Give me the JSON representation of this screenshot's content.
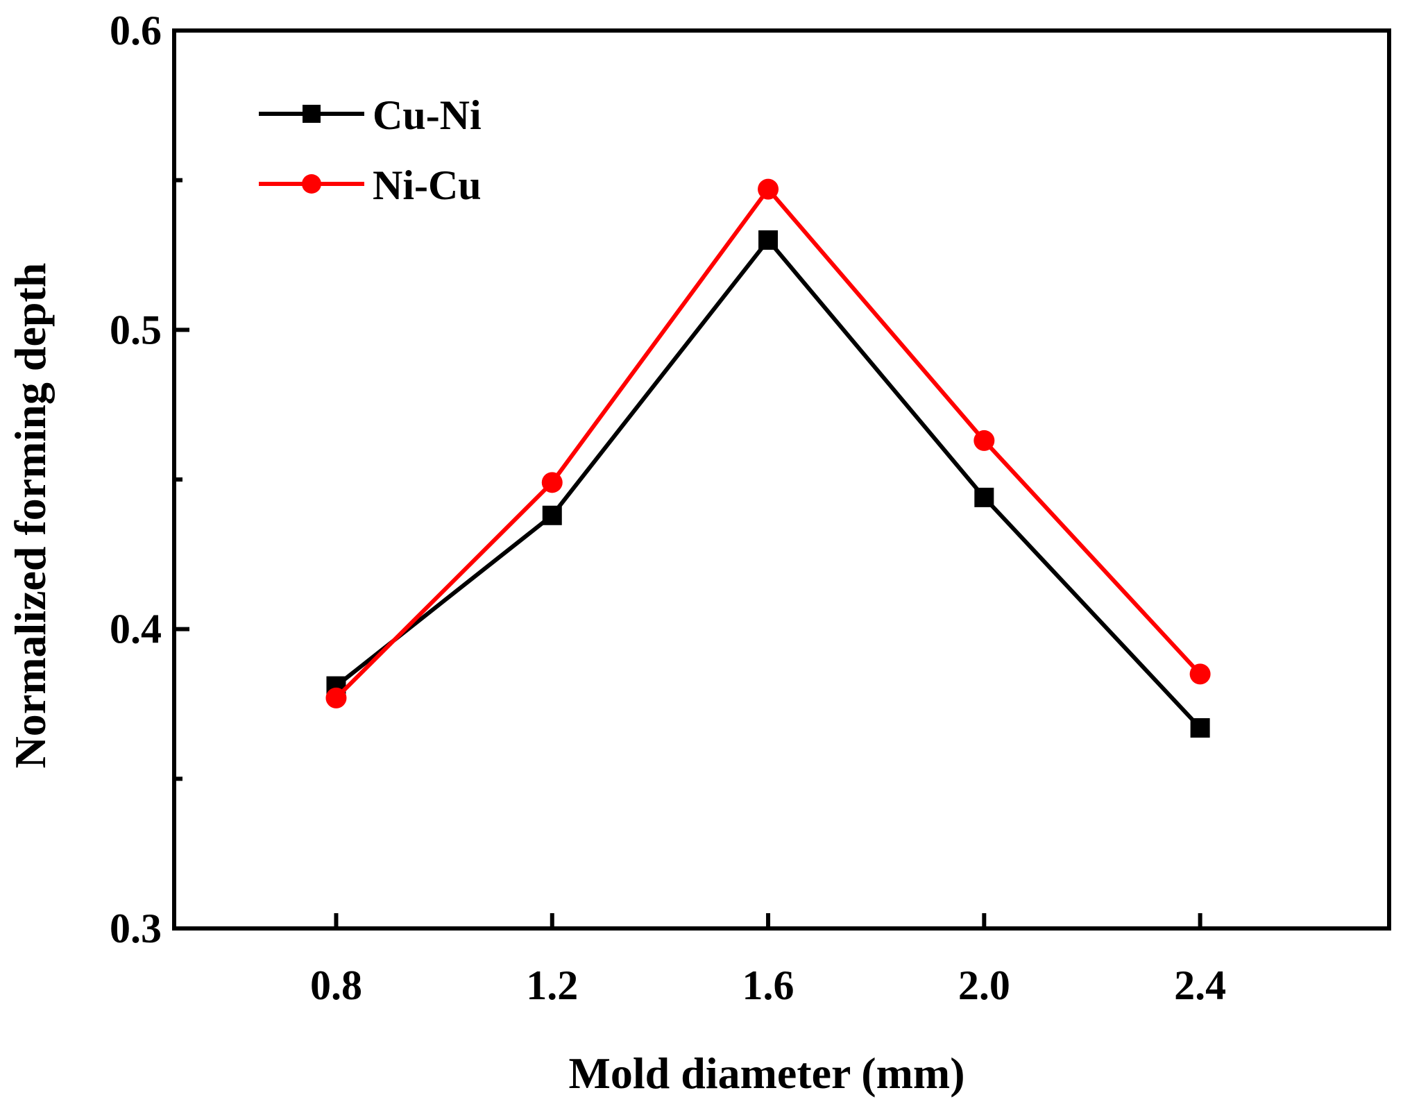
{
  "chart_data": {
    "type": "line",
    "title": "",
    "xlabel": "Mold diameter (mm)",
    "ylabel": "Normalized forming depth",
    "x": [
      0.8,
      1.2,
      1.6,
      2.0,
      2.4
    ],
    "x_tick_labels": [
      "0.8",
      "1.2",
      "1.6",
      "2.0",
      "2.4"
    ],
    "xlim": [
      0.5,
      2.75
    ],
    "ylim": [
      0.3,
      0.6
    ],
    "y_major_ticks": [
      0.3,
      0.4,
      0.5,
      0.6
    ],
    "y_tick_labels": [
      "0.3",
      "0.4",
      "0.5",
      "0.6"
    ],
    "y_minor_ticks": [
      0.35,
      0.45,
      0.55
    ],
    "grid": false,
    "legend_position": "top-left",
    "series": [
      {
        "name": "Cu-Ni",
        "color": "#000000",
        "marker": "square",
        "values": [
          0.381,
          0.438,
          0.53,
          0.444,
          0.367
        ]
      },
      {
        "name": "Ni-Cu",
        "color": "#ff0000",
        "marker": "circle",
        "values": [
          0.377,
          0.449,
          0.547,
          0.463,
          0.385
        ]
      }
    ]
  }
}
